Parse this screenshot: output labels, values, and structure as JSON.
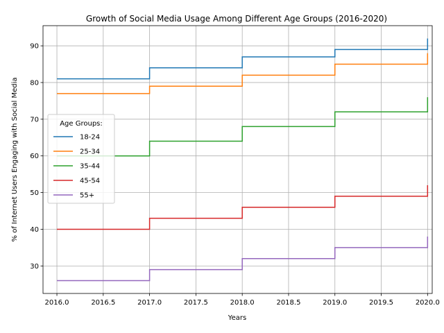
{
  "chart_data": {
    "type": "line",
    "step": "post",
    "title": "Growth of Social Media Usage Among Different Age Groups (2016-2020)",
    "xlabel": "Years",
    "ylabel": "% of Internet Users Engaging with Social Media",
    "x": [
      2016,
      2017,
      2018,
      2019,
      2020
    ],
    "xlim": [
      2015.85,
      2020.05
    ],
    "ylim": [
      22.5,
      95.5
    ],
    "xticks": [
      2016.0,
      2016.5,
      2017.0,
      2017.5,
      2018.0,
      2018.5,
      2019.0,
      2019.5,
      2020.0
    ],
    "xtick_labels": [
      "2016.0",
      "2016.5",
      "2017.0",
      "2017.5",
      "2018.0",
      "2018.5",
      "2019.0",
      "2019.5",
      "2020.0"
    ],
    "yticks": [
      30,
      40,
      50,
      60,
      70,
      80,
      90
    ],
    "ytick_labels": [
      "30",
      "40",
      "50",
      "60",
      "70",
      "80",
      "90"
    ],
    "grid": true,
    "legend_title": "Age Groups:",
    "legend_position": "center-left",
    "series": [
      {
        "name": "18-24",
        "color": "#1f77b4",
        "values": [
          81,
          84,
          87,
          89,
          92
        ]
      },
      {
        "name": "25-34",
        "color": "#ff7f0e",
        "values": [
          77,
          79,
          82,
          85,
          88
        ]
      },
      {
        "name": "35-44",
        "color": "#2ca02c",
        "values": [
          60,
          64,
          68,
          72,
          76
        ]
      },
      {
        "name": "45-54",
        "color": "#d62728",
        "values": [
          40,
          43,
          46,
          49,
          52
        ]
      },
      {
        "name": "55+",
        "color": "#9467bd",
        "values": [
          26,
          29,
          32,
          35,
          38
        ]
      }
    ]
  }
}
